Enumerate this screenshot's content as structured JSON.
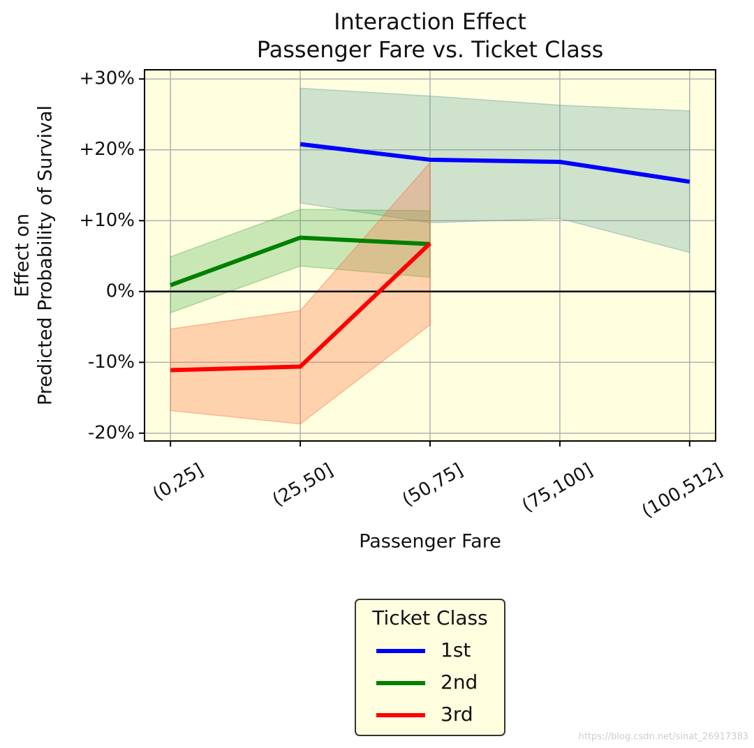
{
  "chart_data": {
    "type": "line",
    "title": "Interaction Effect",
    "subtitle": "Passenger Fare vs. Ticket Class",
    "xlabel": "Passenger Fare",
    "ylabel": [
      "Effect on",
      "Predicted Probability of Survival"
    ],
    "categories": [
      "(0,25]",
      "(25,50]",
      "(50,75]",
      "(75,100]",
      "(100,512]"
    ],
    "series": [
      {
        "name": "1st",
        "color": "#0000ff",
        "band_color": "#5f9ea0",
        "values": [
          null,
          20.8,
          18.6,
          18.3,
          15.5
        ],
        "upper": [
          null,
          28.7,
          27.6,
          26.3,
          25.5
        ],
        "lower": [
          null,
          12.5,
          9.7,
          10.3,
          5.5
        ]
      },
      {
        "name": "2nd",
        "color": "#008000",
        "band_color": "#4caf50",
        "values": [
          0.9,
          7.6,
          6.7,
          null,
          null
        ],
        "upper": [
          4.9,
          11.6,
          11.4,
          null,
          null
        ],
        "lower": [
          -3.0,
          3.6,
          2.0,
          null,
          null
        ]
      },
      {
        "name": "3rd",
        "color": "#ff0000",
        "band_color": "#ff6a3d",
        "values": [
          -11.1,
          -10.6,
          6.8,
          null,
          null
        ],
        "upper": [
          -5.3,
          -2.7,
          18.2,
          null,
          null
        ],
        "lower": [
          -16.8,
          -18.7,
          -4.7,
          null,
          null
        ]
      }
    ],
    "ylim": [
      -21.1,
      31.3
    ],
    "yticks": [
      {
        "value": -20,
        "label": "-20%"
      },
      {
        "value": -10,
        "label": "-10%"
      },
      {
        "value": 0,
        "label": "0%"
      },
      {
        "value": 10,
        "label": "+10%"
      },
      {
        "value": 20,
        "label": "+20%"
      },
      {
        "value": 30,
        "label": "+30%"
      }
    ],
    "hline": 0,
    "grid": true,
    "plot_background": "#ffffe0",
    "legend": {
      "title": "Ticket Class",
      "position": "below"
    },
    "watermark": "https://blog.csdn.net/sinat_26917383"
  }
}
